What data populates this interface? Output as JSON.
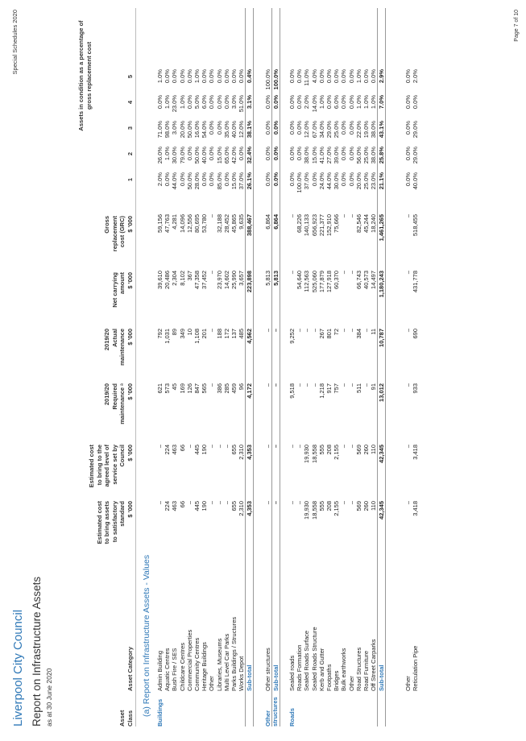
{
  "organisation": "Liverpool City Council",
  "report_title": "Report on Infrastructure Assets",
  "as_at": "as at 30 June 2020",
  "schedule": "Special Schedules 2020",
  "page": "Page 7 of 10",
  "headers": {
    "asset_class": "Asset Class",
    "asset_category": "Asset Category",
    "cost_satisfactory": "Estimated cost\nto bring assets\nto satisfactory\nstandard\n$ '000",
    "cost_agreed": "Estimated cost\nto bring to the\nagreed level of\nservice set by\nCouncil\n$ '000",
    "required_maint": "2019/20\nRequired\nmaintenance ᵃ\n$ '000",
    "actual_maint": "2019/20\nActual\nmaintenance\n$ '000",
    "net_carrying": "Net carrying\namount\n$ '000",
    "gross_replacement": "Gross\nreplacement\ncost (GRC)\n$ '000",
    "condition_title": "Assets in condition as a percentage of\ngross replacement cost",
    "condition_cols": [
      "1",
      "2",
      "3",
      "4",
      "5"
    ]
  },
  "section_title": "(a) Report on Infrastructure Assets - Values",
  "groups": [
    {
      "asset_class": "Buildings",
      "rows": [
        {
          "category": "Admin Building",
          "v": [
            "–",
            "–",
            "621",
            "792",
            "39,610",
            "59,156",
            "2.0%",
            "26.0%",
            "71.0%",
            "0.0%",
            "1.0%"
          ]
        },
        {
          "category": "Aquatic Centres",
          "v": [
            "224",
            "224",
            "573",
            "1,031",
            "20,486",
            "47,763",
            "0.0%",
            "1.0%",
            "98.0%",
            "1.0%",
            "0.0%"
          ]
        },
        {
          "category": "Bush Fire / SES",
          "v": [
            "463",
            "463",
            "45",
            "89",
            "2,304",
            "4,281",
            "44.0%",
            "30.0%",
            "3.0%",
            "23.0%",
            "0.0%"
          ]
        },
        {
          "category": "Childcare Centres",
          "v": [
            "66",
            "66",
            "169",
            "349",
            "8,102",
            "14,096",
            "0.0%",
            "79.0%",
            "20.0%",
            "1.0%",
            "0.0%"
          ]
        },
        {
          "category": "Commercial Properties",
          "v": [
            "–",
            "–",
            "126",
            "10",
            "367",
            "12,556",
            "50.0%",
            "0.0%",
            "50.0%",
            "0.0%",
            "0.0%"
          ]
        },
        {
          "category": "Community Centres",
          "v": [
            "445",
            "445",
            "847",
            "1,108",
            "47,358",
            "80,695",
            "28.0%",
            "50.0%",
            "16.0%",
            "5.0%",
            "1.0%"
          ]
        },
        {
          "category": "Heritage Buildings",
          "v": [
            "190",
            "190",
            "565",
            "201",
            "37,452",
            "53,780",
            "0.0%",
            "40.0%",
            "54.0%",
            "6.0%",
            "0.0%"
          ]
        },
        {
          "category": "Other",
          "v": [
            "–",
            "–",
            "–",
            "–",
            "–",
            "–",
            "0.0%",
            "0.0%",
            "0.0%",
            "0.0%",
            "0.0%"
          ]
        },
        {
          "category": "Libraries, Museums",
          "v": [
            "–",
            "–",
            "386",
            "188",
            "23,970",
            "32,188",
            "85.0%",
            "15.0%",
            "0.0%",
            "0.0%",
            "0.0%"
          ]
        },
        {
          "category": "Multi Level Car Parks",
          "v": [
            "–",
            "–",
            "285",
            "172",
            "14,602",
            "28,452",
            "0.0%",
            "65.0%",
            "35.0%",
            "0.0%",
            "0.0%"
          ]
        },
        {
          "category": "Parks Buildings / Structures",
          "v": [
            "655",
            "655",
            "459",
            "137",
            "25,990",
            "45,865",
            "15.0%",
            "42.0%",
            "40.0%",
            "3.0%",
            "0.0%"
          ]
        },
        {
          "category": "Works Depot",
          "v": [
            "2,310",
            "2,310",
            "96",
            "485",
            "3,657",
            "9,635",
            "37.0%",
            "0.0%",
            "12.0%",
            "51.0%",
            "0.0%"
          ]
        },
        {
          "category": "Sub-total",
          "sub": true,
          "v": [
            "4,353",
            "4,353",
            "4,172",
            "4,562",
            "223,898",
            "388,467",
            "26.1%",
            "32.4%",
            "38.1%",
            "3.1%",
            "0.4%"
          ]
        }
      ]
    },
    {
      "asset_class": "Other structures",
      "rows": [
        {
          "category": "Other structures",
          "v": [
            "–",
            "–",
            "–",
            "–",
            "5,813",
            "6,864",
            "0.0%",
            "0.0%",
            "0.0%",
            "0.0%",
            "100.0%"
          ]
        },
        {
          "category": "Sub-total",
          "sub": true,
          "v": [
            "–",
            "–",
            "–",
            "–",
            "5,813",
            "6,864",
            "0.0%",
            "0.0%",
            "0.0%",
            "0.0%",
            "100.0%"
          ]
        }
      ]
    },
    {
      "asset_class": "Roads",
      "rows": [
        {
          "category": "Sealed roads",
          "v": [
            "–",
            "–",
            "9,518",
            "9,252",
            "–",
            "–",
            "0.0%",
            "0.0%",
            "0.0%",
            "0.0%",
            "0.0%"
          ]
        },
        {
          "category": "Roads Formation",
          "v": [
            "–",
            "–",
            "–",
            "–",
            "54,640",
            "68,226",
            "100.0%",
            "0.0%",
            "0.0%",
            "0.0%",
            "0.0%"
          ]
        },
        {
          "category": "Sealed Roads Surface",
          "v": [
            "19,930",
            "19,930",
            "–",
            "–",
            "112,563",
            "140,133",
            "37.0%",
            "38.0%",
            "12.0%",
            "2.0%",
            "11.0%"
          ]
        },
        {
          "category": "Sealed Roads Structure",
          "v": [
            "18,558",
            "18,558",
            "–",
            "–",
            "525,060",
            "656,923",
            "0.0%",
            "15.0%",
            "67.0%",
            "14.0%",
            "4.0%"
          ]
        },
        {
          "category": "Kerb and Gutter",
          "v": [
            "555",
            "555",
            "1,218",
            "267",
            "177,879",
            "221,377",
            "24.0%",
            "41.0%",
            "34.0%",
            "1.0%",
            "0.0%"
          ]
        },
        {
          "category": "Footpaths",
          "v": [
            "208",
            "208",
            "917",
            "801",
            "127,918",
            "152,910",
            "44.0%",
            "27.0%",
            "29.0%",
            "0.0%",
            "0.0%"
          ]
        },
        {
          "category": "Bridges",
          "v": [
            "2,155",
            "2,155",
            "757",
            "72",
            "60,370",
            "75,666",
            "30.0%",
            "39.0%",
            "25.0%",
            "6.0%",
            "0.0%"
          ]
        },
        {
          "category": "Bulk earthworks",
          "v": [
            "–",
            "–",
            "–",
            "–",
            "–",
            "–",
            "0.0%",
            "0.0%",
            "0.0%",
            "0.0%",
            "0.0%"
          ]
        },
        {
          "category": "Other",
          "v": [
            "–",
            "–",
            "–",
            "–",
            "–",
            "–",
            "0.0%",
            "0.0%",
            "0.0%",
            "0.0%",
            "0.0%"
          ]
        },
        {
          "category": "Road Structures",
          "v": [
            "569",
            "569",
            "511",
            "384",
            "66,743",
            "82,546",
            "20.0%",
            "56.0%",
            "22.0%",
            "1.0%",
            "1.0%"
          ]
        },
        {
          "category": "Road Furniture",
          "v": [
            "260",
            "260",
            "–",
            "–",
            "40,573",
            "45,244",
            "25.0%",
            "25.0%",
            "19.0%",
            "1.0%",
            "0.0%"
          ]
        },
        {
          "category": "Off Street Carparks",
          "v": [
            "110",
            "110",
            "91",
            "11",
            "14,497",
            "18,240",
            "23.0%",
            "38.0%",
            "38.0%",
            "1.0%",
            "0.0%"
          ]
        },
        {
          "category": "Sub-total",
          "sub": true,
          "v": [
            "42,345",
            "42,345",
            "13,012",
            "10,787",
            "1,180,243",
            "1,461,265",
            "21.1%",
            "25.8%",
            "43.1%",
            "7.0%",
            "2.9%"
          ]
        }
      ]
    },
    {
      "asset_class": "",
      "rows": [
        {
          "category": "Other",
          "v": [
            "–",
            "–",
            "–",
            "–",
            "–",
            "–",
            "0.0%",
            "0.0%",
            "0.0%",
            "0.0%",
            "0.0%"
          ]
        },
        {
          "category": "Reticulation Pipe",
          "v": [
            "3,418",
            "3,418",
            "933",
            "690",
            "431,778",
            "518,455",
            "40.0%",
            "29.0%",
            "29.0%",
            "0.0%",
            "2.0%"
          ]
        }
      ]
    }
  ]
}
